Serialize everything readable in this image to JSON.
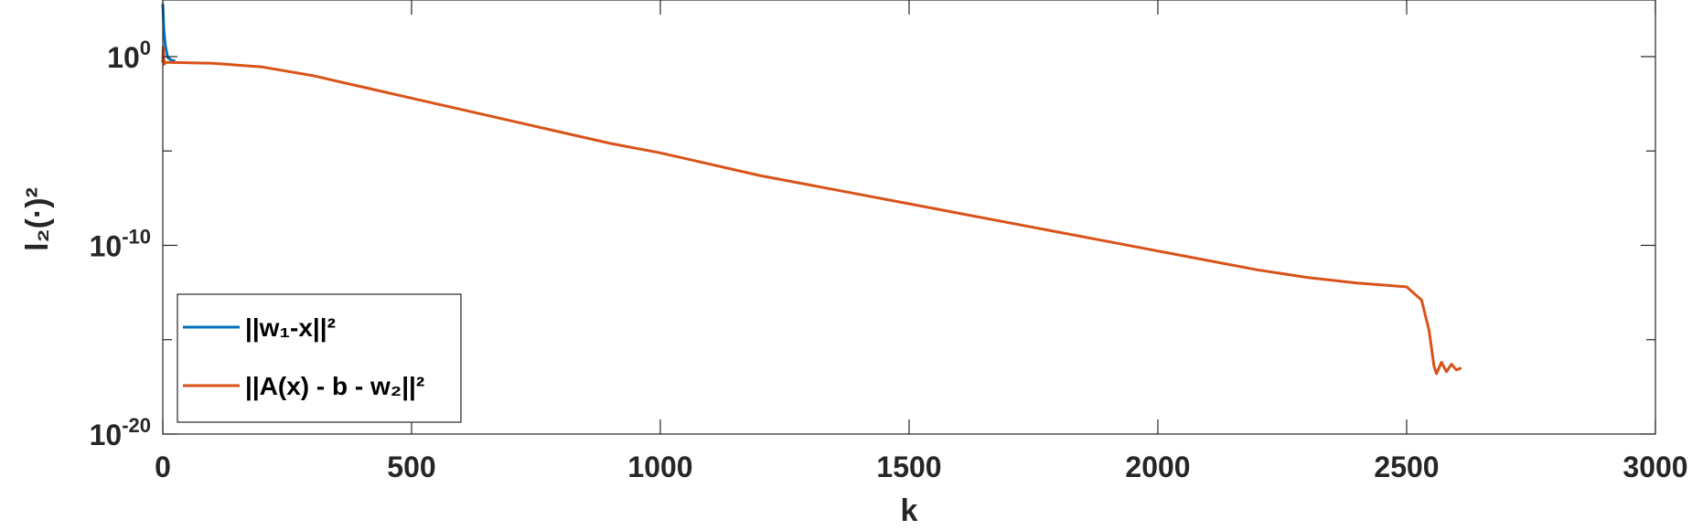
{
  "chart_data": {
    "type": "line",
    "xlabel": "k",
    "ylabel": "l₂(·)²",
    "xlim": [
      0,
      3000
    ],
    "y_scale": "log",
    "ylim_exponent": [
      -20,
      3
    ],
    "x_ticks": [
      0,
      500,
      1000,
      1500,
      2000,
      2500,
      3000
    ],
    "x_tick_labels": [
      "0",
      "500",
      "1000",
      "1500",
      "2000",
      "2500",
      "3000"
    ],
    "y_tick_labels": [
      {
        "exponent": 0,
        "base": "10",
        "sup": "0"
      },
      {
        "exponent": -10,
        "base": "10",
        "sup": "-10"
      },
      {
        "exponent": -20,
        "base": "10",
        "sup": "-20"
      }
    ],
    "y_minor_exponents": [
      -15,
      -5
    ],
    "grid": false,
    "legend_position": "bottom-left",
    "series": [
      {
        "name": "||w₁-x||²",
        "color": "#0072BD",
        "x": [
          0,
          2,
          5,
          10,
          18,
          25
        ],
        "log10_y": [
          2.8,
          1.5,
          0.6,
          -0.05,
          -0.2,
          -0.22
        ]
      },
      {
        "name": "||A(x) - b - w₂||²",
        "color": "#D95319",
        "x": [
          0,
          1,
          3,
          6,
          10,
          100,
          200,
          300,
          400,
          500,
          600,
          700,
          800,
          900,
          1000,
          1100,
          1200,
          1300,
          1400,
          1500,
          1600,
          1700,
          1800,
          1900,
          2000,
          2100,
          2200,
          2300,
          2400,
          2500,
          2530,
          2545,
          2555,
          2560,
          2570,
          2580,
          2590,
          2600,
          2610
        ],
        "log10_y": [
          -0.3,
          0.5,
          -0.4,
          -0.3,
          -0.3,
          -0.35,
          -0.55,
          -1.0,
          -1.6,
          -2.2,
          -2.8,
          -3.4,
          -4.0,
          -4.6,
          -5.1,
          -5.7,
          -6.3,
          -6.8,
          -7.3,
          -7.8,
          -8.3,
          -8.8,
          -9.3,
          -9.8,
          -10.3,
          -10.8,
          -11.3,
          -11.7,
          -12.0,
          -12.2,
          -12.9,
          -14.5,
          -16.4,
          -16.8,
          -16.2,
          -16.7,
          -16.3,
          -16.6,
          -16.5
        ]
      }
    ]
  }
}
